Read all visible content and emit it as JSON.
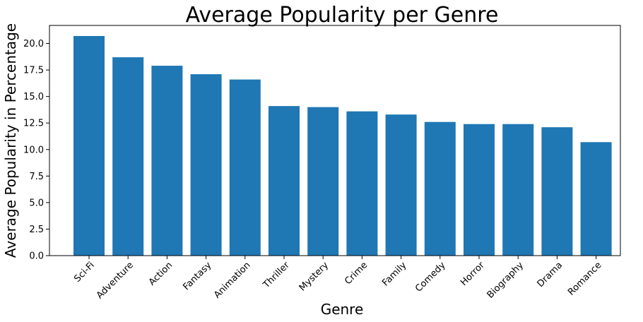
{
  "chart_data": {
    "type": "bar",
    "title": "Average Popularity per Genre",
    "xlabel": "Genre",
    "ylabel": "Average Popularity in Percentage",
    "categories": [
      "Sci-Fi",
      "Adventure",
      "Action",
      "Fantasy",
      "Animation",
      "Thriller",
      "Mystery",
      "Crime",
      "Family",
      "Comedy",
      "Horror",
      "Biography",
      "Drama",
      "Romance"
    ],
    "values": [
      20.7,
      18.7,
      17.9,
      17.1,
      16.6,
      14.1,
      14.0,
      13.6,
      13.3,
      12.6,
      12.4,
      12.4,
      12.1,
      10.7
    ],
    "yticks": [
      "0.0",
      "2.5",
      "5.0",
      "7.5",
      "10.0",
      "12.5",
      "15.0",
      "17.5",
      "20.0"
    ],
    "ylim": [
      0,
      21.7
    ],
    "grid": false,
    "legend": "none",
    "bar_color": "#1f77b4"
  }
}
